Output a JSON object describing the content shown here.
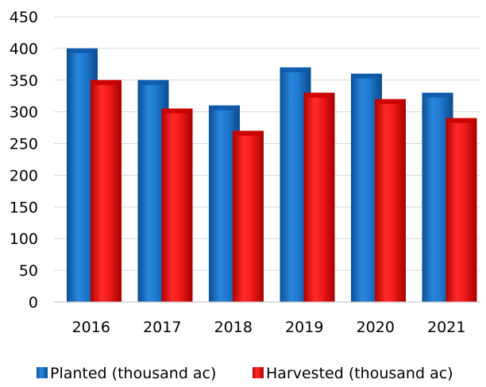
{
  "chart_data": {
    "type": "bar",
    "title": "",
    "xlabel": "",
    "ylabel": "",
    "categories": [
      "2016",
      "2017",
      "2018",
      "2019",
      "2020",
      "2021"
    ],
    "series": [
      {
        "name": "Planted (thousand ac)",
        "values": [
          400,
          350,
          310,
          370,
          360,
          330
        ],
        "color": "#1a6fc4"
      },
      {
        "name": "Harvested (thousand ac)",
        "values": [
          350,
          305,
          270,
          330,
          320,
          290
        ],
        "color": "#e81818"
      }
    ],
    "ylim": [
      0,
      450
    ],
    "yticks": [
      0,
      50,
      100,
      150,
      200,
      250,
      300,
      350,
      400,
      450
    ],
    "grid": true,
    "legend_position": "bottom"
  }
}
